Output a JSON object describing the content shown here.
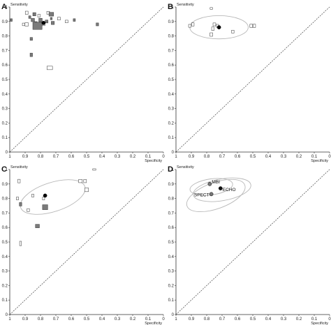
{
  "chart_data": [
    {
      "panel": "A",
      "type": "scatter",
      "xlabel": "Specificity",
      "ylabel": "Sensitivity",
      "xlim": [
        1,
        0
      ],
      "ylim": [
        0,
        1
      ],
      "xticks": [
        "1",
        "0.9",
        "0.8",
        "0.7",
        "0.6",
        "0.5",
        "0.4",
        "0.3",
        "0.2",
        "0.1",
        "0"
      ],
      "yticks": [
        "0",
        "0.1",
        "0.2",
        "0.3",
        "0.4",
        "0.5",
        "0.6",
        "0.7",
        "0.8",
        "0.9",
        "1"
      ],
      "diagonal": true,
      "studies": [
        {
          "x": 0.99,
          "y": 0.91,
          "w": 0.012,
          "h": 0.018,
          "fill": "#7a7a7a"
        },
        {
          "x": 0.89,
          "y": 0.96,
          "w": 0.018,
          "h": 0.022,
          "fill": "#ffffff"
        },
        {
          "x": 0.84,
          "y": 0.95,
          "w": 0.02,
          "h": 0.022,
          "fill": "#7a7a7a"
        },
        {
          "x": 0.87,
          "y": 0.93,
          "w": 0.014,
          "h": 0.018,
          "fill": "#7a7a7a"
        },
        {
          "x": 0.85,
          "y": 0.91,
          "w": 0.022,
          "h": 0.022,
          "fill": "#7a7a7a"
        },
        {
          "x": 0.83,
          "y": 0.89,
          "w": 0.016,
          "h": 0.018,
          "fill": "#7a7a7a"
        },
        {
          "x": 0.81,
          "y": 0.94,
          "w": 0.016,
          "h": 0.02,
          "fill": "#ffffff"
        },
        {
          "x": 0.8,
          "y": 0.91,
          "w": 0.022,
          "h": 0.024,
          "fill": "#7a7a7a"
        },
        {
          "x": 0.82,
          "y": 0.87,
          "w": 0.06,
          "h": 0.05,
          "fill": "#7a7a7a"
        },
        {
          "x": 0.78,
          "y": 0.88,
          "w": 0.018,
          "h": 0.018,
          "fill": "#ffffff"
        },
        {
          "x": 0.76,
          "y": 0.9,
          "w": 0.018,
          "h": 0.02,
          "fill": "#7a7a7a"
        },
        {
          "x": 0.75,
          "y": 0.96,
          "w": 0.018,
          "h": 0.02,
          "fill": "#ffffff"
        },
        {
          "x": 0.73,
          "y": 0.95,
          "w": 0.03,
          "h": 0.026,
          "fill": "#7a7a7a"
        },
        {
          "x": 0.73,
          "y": 0.92,
          "w": 0.012,
          "h": 0.016,
          "fill": "#7a7a7a"
        },
        {
          "x": 0.72,
          "y": 0.89,
          "w": 0.02,
          "h": 0.022,
          "fill": "#7a7a7a"
        },
        {
          "x": 0.68,
          "y": 0.92,
          "w": 0.018,
          "h": 0.02,
          "fill": "#ffffff"
        },
        {
          "x": 0.63,
          "y": 0.9,
          "w": 0.018,
          "h": 0.018,
          "fill": "#ffffff"
        },
        {
          "x": 0.58,
          "y": 0.91,
          "w": 0.014,
          "h": 0.018,
          "fill": "#7a7a7a"
        },
        {
          "x": 0.89,
          "y": 0.88,
          "w": 0.022,
          "h": 0.022,
          "fill": "#ffffff"
        },
        {
          "x": 0.91,
          "y": 0.88,
          "w": 0.016,
          "h": 0.018,
          "fill": "#ffffff"
        },
        {
          "x": 0.43,
          "y": 0.88,
          "w": 0.016,
          "h": 0.02,
          "fill": "#7a7a7a"
        },
        {
          "x": 0.86,
          "y": 0.78,
          "w": 0.016,
          "h": 0.02,
          "fill": "#7a7a7a"
        },
        {
          "x": 0.86,
          "y": 0.67,
          "w": 0.016,
          "h": 0.024,
          "fill": "#7a7a7a"
        },
        {
          "x": 0.74,
          "y": 0.58,
          "w": 0.036,
          "h": 0.024,
          "fill": "#ffffff"
        }
      ],
      "summary_points": [
        {
          "x": 0.78,
          "y": 0.89
        }
      ],
      "confidence_regions": [],
      "annotations": []
    },
    {
      "panel": "B",
      "type": "scatter",
      "xlabel": "Specificity",
      "ylabel": "Sensitivity",
      "xlim": [
        1,
        0
      ],
      "ylim": [
        0,
        1
      ],
      "xticks": [
        "1",
        "0.9",
        "0.8",
        "0.7",
        "0.6",
        "0.5",
        "0.4",
        "0.3",
        "0.2",
        "0.1",
        "0"
      ],
      "yticks": [
        "0",
        "0.1",
        "0.2",
        "0.3",
        "0.4",
        "0.5",
        "0.6",
        "0.7",
        "0.8",
        "0.9",
        "1"
      ],
      "diagonal": true,
      "studies": [
        {
          "x": 0.77,
          "y": 0.99,
          "w": 0.016,
          "h": 0.012,
          "fill": "#ffffff"
        },
        {
          "x": 0.91,
          "y": 0.87,
          "w": 0.016,
          "h": 0.02,
          "fill": "#ffffff"
        },
        {
          "x": 0.89,
          "y": 0.88,
          "w": 0.016,
          "h": 0.022,
          "fill": "#ffffff"
        },
        {
          "x": 0.75,
          "y": 0.88,
          "w": 0.018,
          "h": 0.02,
          "fill": "#ffffff"
        },
        {
          "x": 0.76,
          "y": 0.85,
          "w": 0.016,
          "h": 0.024,
          "fill": "#ffffff"
        },
        {
          "x": 0.77,
          "y": 0.81,
          "w": 0.018,
          "h": 0.024,
          "fill": "#ffffff"
        },
        {
          "x": 0.73,
          "y": 0.87,
          "w": 0.016,
          "h": 0.02,
          "fill": "#ffffff"
        },
        {
          "x": 0.51,
          "y": 0.87,
          "w": 0.018,
          "h": 0.022,
          "fill": "#ffffff"
        },
        {
          "x": 0.49,
          "y": 0.87,
          "w": 0.016,
          "h": 0.022,
          "fill": "#ffffff"
        },
        {
          "x": 0.63,
          "y": 0.83,
          "w": 0.016,
          "h": 0.02,
          "fill": "#ffffff"
        }
      ],
      "summary_points": [
        {
          "x": 0.72,
          "y": 0.86
        }
      ],
      "confidence_regions": [
        {
          "cx": 0.72,
          "cy": 0.86,
          "rx": 0.19,
          "ry": 0.08,
          "rot": 0
        }
      ],
      "annotations": []
    },
    {
      "panel": "C",
      "type": "scatter",
      "xlabel": "Specificity",
      "ylabel": "Sensitivity",
      "xlim": [
        1,
        0
      ],
      "ylim": [
        0,
        1
      ],
      "xticks": [
        "1",
        "0.9",
        "0.8",
        "0.7",
        "0.6",
        "0.5",
        "0.4",
        "0.3",
        "0.2",
        "0.1",
        "0"
      ],
      "yticks": [
        "0",
        "0.1",
        "0.2",
        "0.3",
        "0.4",
        "0.5",
        "0.6",
        "0.7",
        "0.8",
        "0.9",
        "1"
      ],
      "diagonal": true,
      "studies": [
        {
          "x": 0.45,
          "y": 1.0,
          "w": 0.02,
          "h": 0.01,
          "fill": "#ffffff"
        },
        {
          "x": 0.94,
          "y": 0.92,
          "w": 0.016,
          "h": 0.024,
          "fill": "#ffffff"
        },
        {
          "x": 0.54,
          "y": 0.92,
          "w": 0.024,
          "h": 0.022,
          "fill": "#ffffff"
        },
        {
          "x": 0.51,
          "y": 0.92,
          "w": 0.018,
          "h": 0.022,
          "fill": "#ffffff"
        },
        {
          "x": 0.5,
          "y": 0.86,
          "w": 0.024,
          "h": 0.026,
          "fill": "#ffffff"
        },
        {
          "x": 0.95,
          "y": 0.8,
          "w": 0.014,
          "h": 0.02,
          "fill": "#ffffff"
        },
        {
          "x": 0.85,
          "y": 0.82,
          "w": 0.014,
          "h": 0.02,
          "fill": "#ffffff"
        },
        {
          "x": 0.78,
          "y": 0.8,
          "w": 0.014,
          "h": 0.02,
          "fill": "#ffffff"
        },
        {
          "x": 0.93,
          "y": 0.76,
          "w": 0.016,
          "h": 0.024,
          "fill": "#7a7a7a"
        },
        {
          "x": 0.88,
          "y": 0.72,
          "w": 0.016,
          "h": 0.02,
          "fill": "#ffffff"
        },
        {
          "x": 0.77,
          "y": 0.74,
          "w": 0.034,
          "h": 0.034,
          "fill": "#7a7a7a"
        },
        {
          "x": 0.82,
          "y": 0.61,
          "w": 0.026,
          "h": 0.024,
          "fill": "#7a7a7a"
        },
        {
          "x": 0.93,
          "y": 0.49,
          "w": 0.012,
          "h": 0.03,
          "fill": "#ffffff"
        }
      ],
      "summary_points": [
        {
          "x": 0.77,
          "y": 0.82
        }
      ],
      "confidence_regions": [
        {
          "cx": 0.72,
          "cy": 0.81,
          "rx": 0.22,
          "ry": 0.1,
          "rot": -18
        }
      ],
      "annotations": []
    },
    {
      "panel": "D",
      "type": "scatter",
      "xlabel": "Specificity",
      "ylabel": "Sensitivity",
      "xlim": [
        1,
        0
      ],
      "ylim": [
        0,
        1
      ],
      "xticks": [
        "1",
        "0.9",
        "0.8",
        "0.7",
        "0.6",
        "0.5",
        "0.4",
        "0.3",
        "0.2",
        "0.1",
        "0"
      ],
      "yticks": [
        "0",
        "0.1",
        "0.2",
        "0.3",
        "0.4",
        "0.5",
        "0.6",
        "0.7",
        "0.8",
        "0.9",
        "1"
      ],
      "diagonal": true,
      "studies": [],
      "summary_points": [
        {
          "x": 0.78,
          "y": 0.9,
          "label": "MBI",
          "fill": "#777777"
        },
        {
          "x": 0.71,
          "y": 0.87,
          "label": "ECHO",
          "fill": "#111111"
        },
        {
          "x": 0.77,
          "y": 0.83,
          "label": "SPECT",
          "fill": "#777777"
        }
      ],
      "confidence_regions": [
        {
          "cx": 0.77,
          "cy": 0.88,
          "rx": 0.14,
          "ry": 0.055,
          "rot": -8
        },
        {
          "cx": 0.7,
          "cy": 0.86,
          "rx": 0.19,
          "ry": 0.075,
          "rot": -10
        },
        {
          "cx": 0.74,
          "cy": 0.82,
          "rx": 0.2,
          "ry": 0.09,
          "rot": -20
        }
      ],
      "annotations": []
    }
  ]
}
